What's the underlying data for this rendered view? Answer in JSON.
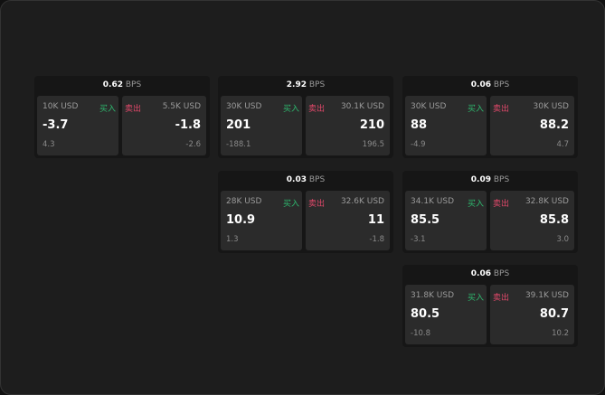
{
  "unit": "BPS",
  "buy_label": "买入",
  "sell_label": "卖出",
  "colors": {
    "buy": "#2eb86e",
    "sell": "#e0486a"
  },
  "cards": [
    {
      "spread": "0.62",
      "bid_size": "10K USD",
      "bid": "-3.7",
      "bid_change": "4.3",
      "ask_size": "5.5K USD",
      "ask": "-1.8",
      "ask_change": "-2.6"
    },
    {
      "spread": "2.92",
      "bid_size": "30K USD",
      "bid": "201",
      "bid_change": "-188.1",
      "ask_size": "30.1K USD",
      "ask": "210",
      "ask_change": "196.5"
    },
    {
      "spread": "0.06",
      "bid_size": "30K USD",
      "bid": "88",
      "bid_change": "-4.9",
      "ask_size": "30K USD",
      "ask": "88.2",
      "ask_change": "4.7"
    },
    {
      "spread": "0.03",
      "bid_size": "28K USD",
      "bid": "10.9",
      "bid_change": "1.3",
      "ask_size": "32.6K USD",
      "ask": "11",
      "ask_change": "-1.8"
    },
    {
      "spread": "0.09",
      "bid_size": "34.1K USD",
      "bid": "85.5",
      "bid_change": "-3.1",
      "ask_size": "32.8K USD",
      "ask": "85.8",
      "ask_change": "3.0"
    },
    {
      "spread": "0.06",
      "bid_size": "31.8K USD",
      "bid": "80.5",
      "bid_change": "-10.8",
      "ask_size": "39.1K USD",
      "ask": "80.7",
      "ask_change": "10.2"
    }
  ]
}
